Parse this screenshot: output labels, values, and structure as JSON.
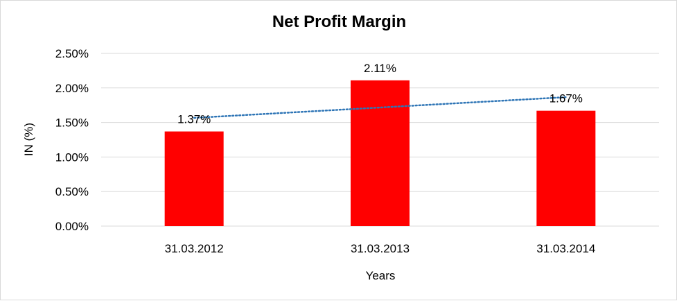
{
  "chart_data": {
    "type": "bar",
    "title": "Net Profit Margin",
    "xlabel": "Years",
    "ylabel": "IN (%)",
    "categories": [
      "31.03.2012",
      "31.03.2013",
      "31.03.2014"
    ],
    "values": [
      1.37,
      2.11,
      1.67
    ],
    "data_labels": [
      "1.37%",
      "2.11%",
      "1.67%"
    ],
    "ylim": [
      0,
      2.5
    ],
    "yticks": [
      0,
      0.5,
      1.0,
      1.5,
      2.0,
      2.5
    ],
    "ytick_labels": [
      "0.00%",
      "0.50%",
      "1.00%",
      "1.50%",
      "2.00%",
      "2.50%"
    ],
    "grid": true,
    "legend": "none",
    "trendline": {
      "type": "linear",
      "style": "dotted"
    },
    "colors": {
      "bar": "#ff0000",
      "trendline": "#2e75b6",
      "grid": "#d9d9d9"
    }
  }
}
